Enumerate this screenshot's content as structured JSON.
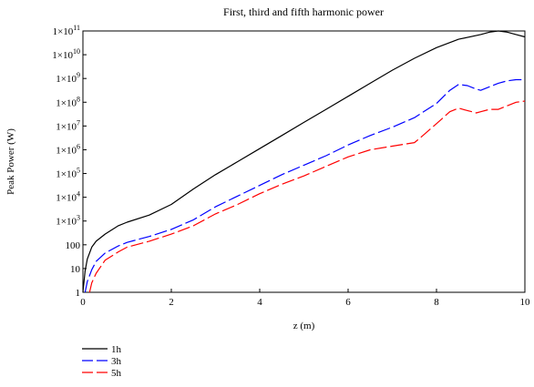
{
  "chart_data": {
    "type": "line",
    "title": "First, third and fifth harmonic power",
    "xlabel": "z (m)",
    "ylabel": "Peak Power (W)",
    "xlim": [
      0,
      10
    ],
    "ylim_log10": [
      0,
      11
    ],
    "y_scale": "log",
    "grid": false,
    "legend_position": "bottom-left",
    "x_ticks": [
      {
        "value": 0,
        "label": "0"
      },
      {
        "value": 2,
        "label": "2"
      },
      {
        "value": 4,
        "label": "4"
      },
      {
        "value": 6,
        "label": "6"
      },
      {
        "value": 8,
        "label": "8"
      },
      {
        "value": 10,
        "label": "10"
      }
    ],
    "y_ticks": [
      {
        "log10": 0,
        "base": "1",
        "exp": ""
      },
      {
        "log10": 1,
        "base": "10",
        "exp": ""
      },
      {
        "log10": 2,
        "base": "100",
        "exp": ""
      },
      {
        "log10": 3,
        "base": "1×10",
        "exp": "3"
      },
      {
        "log10": 4,
        "base": "1×10",
        "exp": "4"
      },
      {
        "log10": 5,
        "base": "1×10",
        "exp": "5"
      },
      {
        "log10": 6,
        "base": "1×10",
        "exp": "6"
      },
      {
        "log10": 7,
        "base": "1×10",
        "exp": "7"
      },
      {
        "log10": 8,
        "base": "1×10",
        "exp": "8"
      },
      {
        "log10": 9,
        "base": "1×10",
        "exp": "9"
      },
      {
        "log10": 10,
        "base": "1×10",
        "exp": "10"
      },
      {
        "log10": 11,
        "base": "1×10",
        "exp": "11"
      }
    ],
    "series": [
      {
        "name": "1h",
        "color": "#000000",
        "dash": "solid",
        "x": [
          0,
          0.05,
          0.1,
          0.2,
          0.3,
          0.5,
          0.8,
          1.0,
          1.5,
          2.0,
          2.5,
          3.0,
          3.5,
          4.0,
          4.5,
          5.0,
          5.5,
          6.0,
          6.5,
          7.0,
          7.5,
          8.0,
          8.5,
          9.0,
          9.2,
          9.4,
          9.6,
          9.8,
          10.0
        ],
        "log10_y": [
          0.0,
          0.9,
          1.4,
          1.9,
          2.15,
          2.45,
          2.8,
          2.95,
          3.25,
          3.7,
          4.35,
          4.95,
          5.5,
          6.05,
          6.6,
          7.15,
          7.7,
          8.25,
          8.8,
          9.35,
          9.85,
          10.3,
          10.65,
          10.85,
          10.95,
          11.0,
          10.95,
          10.85,
          10.75
        ]
      },
      {
        "name": "3h",
        "color": "#0000ff",
        "dash": "longdash",
        "x": [
          0.05,
          0.1,
          0.2,
          0.3,
          0.5,
          0.8,
          1.0,
          1.5,
          2.0,
          2.5,
          3.0,
          3.5,
          4.0,
          4.5,
          5.0,
          5.5,
          6.0,
          6.5,
          7.0,
          7.5,
          8.0,
          8.3,
          8.5,
          8.7,
          8.9,
          9.0,
          9.2,
          9.4,
          9.6,
          9.8,
          10.0
        ],
        "log10_y": [
          0.0,
          0.45,
          0.95,
          1.3,
          1.65,
          1.95,
          2.1,
          2.35,
          2.65,
          3.05,
          3.6,
          4.05,
          4.5,
          4.95,
          5.35,
          5.75,
          6.2,
          6.6,
          6.95,
          7.35,
          7.95,
          8.5,
          8.75,
          8.7,
          8.55,
          8.5,
          8.65,
          8.8,
          8.9,
          8.95,
          8.95
        ]
      },
      {
        "name": "5h",
        "color": "#ff0000",
        "dash": "longdash",
        "x": [
          0.15,
          0.2,
          0.3,
          0.5,
          0.8,
          1.0,
          1.5,
          2.0,
          2.5,
          3.0,
          3.5,
          4.0,
          4.5,
          5.0,
          5.5,
          6.0,
          6.5,
          7.0,
          7.5,
          7.6,
          8.0,
          8.3,
          8.5,
          8.7,
          8.9,
          9.0,
          9.2,
          9.4,
          9.6,
          9.8,
          10.0
        ],
        "log10_y": [
          0.0,
          0.4,
          0.8,
          1.35,
          1.7,
          1.9,
          2.15,
          2.45,
          2.8,
          3.3,
          3.7,
          4.15,
          4.55,
          4.9,
          5.3,
          5.7,
          6.0,
          6.15,
          6.3,
          6.45,
          7.1,
          7.6,
          7.75,
          7.65,
          7.55,
          7.6,
          7.7,
          7.7,
          7.85,
          8.0,
          8.05
        ]
      }
    ]
  }
}
